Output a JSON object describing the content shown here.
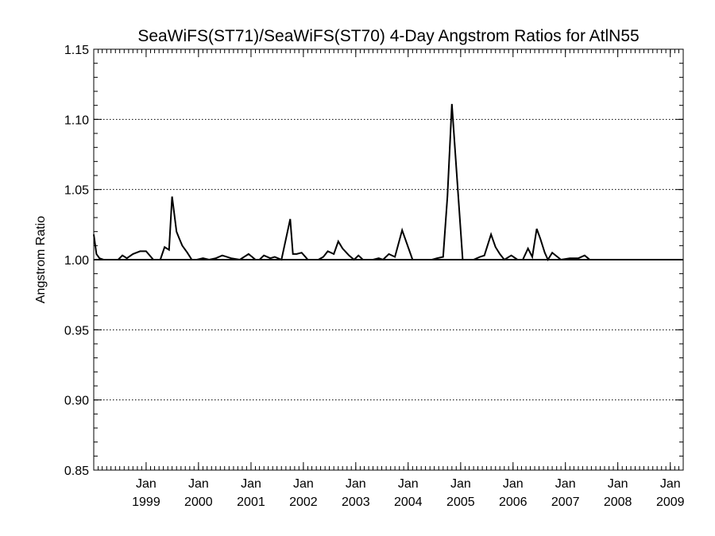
{
  "chart_data": {
    "type": "line",
    "title": "SeaWiFS(ST71)/SeaWiFS(ST70) 4-Day Angstrom Ratios for AtlN55",
    "xlabel": "",
    "ylabel": "Angstrom Ratio",
    "ylim": [
      0.85,
      1.15
    ],
    "yticks": [
      0.85,
      0.9,
      0.95,
      1.0,
      1.05,
      1.1,
      1.15
    ],
    "ytick_labels": [
      "0.85",
      "0.90",
      "0.95",
      "1.00",
      "1.05",
      "1.10",
      "1.15"
    ],
    "xlim": [
      "1998-01-01",
      "2009-04-01"
    ],
    "xticks": [
      {
        "date": "1999-01-01",
        "month": "Jan",
        "year": "1999"
      },
      {
        "date": "2000-01-01",
        "month": "Jan",
        "year": "2000"
      },
      {
        "date": "2001-01-01",
        "month": "Jan",
        "year": "2001"
      },
      {
        "date": "2002-01-01",
        "month": "Jan",
        "year": "2002"
      },
      {
        "date": "2003-01-01",
        "month": "Jan",
        "year": "2003"
      },
      {
        "date": "2004-01-01",
        "month": "Jan",
        "year": "2004"
      },
      {
        "date": "2005-01-01",
        "month": "Jan",
        "year": "2005"
      },
      {
        "date": "2006-01-01",
        "month": "Jan",
        "year": "2006"
      },
      {
        "date": "2007-01-01",
        "month": "Jan",
        "year": "2007"
      },
      {
        "date": "2008-01-01",
        "month": "Jan",
        "year": "2008"
      },
      {
        "date": "2009-01-01",
        "month": "Jan",
        "year": "2009"
      }
    ],
    "grid": "horizontal-dotted",
    "reference_line": 1.0,
    "series": [
      {
        "x": [
          "1998-01-01",
          "1998-01-20",
          "1998-02-10",
          "1998-03-10",
          "1998-04-15",
          "1998-05-20",
          "1998-06-20",
          "1998-07-20",
          "1998-08-20",
          "1998-10-01",
          "1998-11-20",
          "1999-01-01",
          "1999-02-20",
          "1999-04-10",
          "1999-05-10",
          "1999-06-10",
          "1999-07-01",
          "1999-08-01",
          "1999-08-20",
          "1999-09-10",
          "1999-10-15",
          "1999-11-15",
          "1999-12-20",
          "2000-02-01",
          "2000-03-15",
          "2000-05-01",
          "2000-06-15",
          "2000-08-15",
          "2000-10-15",
          "2000-12-15",
          "2001-02-01",
          "2001-03-01",
          "2001-04-01",
          "2001-05-15",
          "2001-06-15",
          "2001-08-01",
          "2001-10-01",
          "2001-10-20",
          "2001-11-15",
          "2001-12-20",
          "2002-02-01",
          "2002-03-15",
          "2002-04-15",
          "2002-05-20",
          "2002-06-20",
          "2002-08-01",
          "2002-09-01",
          "2002-10-01",
          "2002-11-15",
          "2002-12-20",
          "2003-01-20",
          "2003-02-20",
          "2003-04-01",
          "2003-05-01",
          "2003-06-10",
          "2003-07-10",
          "2003-08-20",
          "2003-10-01",
          "2003-11-20",
          "2004-02-01",
          "2004-03-15",
          "2004-04-15",
          "2004-05-15",
          "2004-06-15",
          "2004-07-20",
          "2004-09-01",
          "2004-10-01",
          "2004-11-01",
          "2005-01-15",
          "2005-02-10",
          "2005-03-01",
          "2005-04-01",
          "2005-05-15",
          "2005-06-15",
          "2005-08-01",
          "2005-09-01",
          "2005-10-01",
          "2005-11-01",
          "2005-12-20",
          "2006-02-01",
          "2006-03-10",
          "2006-04-15",
          "2006-05-15",
          "2006-06-15",
          "2006-07-10",
          "2006-08-10",
          "2006-09-01",
          "2006-10-01",
          "2006-12-01",
          "2007-02-01",
          "2007-03-01",
          "2007-04-01",
          "2007-05-15",
          "2007-06-20",
          "2007-08-01",
          "2007-09-01",
          "2007-10-01",
          "2007-11-15",
          "2008-01-20",
          "2008-03-15",
          "2008-05-15",
          "2008-08-01",
          "2008-11-01",
          "2009-02-01",
          "2009-04-01"
        ],
        "y": [
          1.018,
          1.004,
          1.001,
          1.0,
          1.0,
          1.0,
          1.0,
          1.003,
          1.001,
          1.004,
          1.006,
          1.006,
          1.0,
          1.0,
          1.009,
          1.007,
          1.045,
          1.02,
          1.015,
          1.01,
          1.005,
          1.0,
          1.0,
          1.001,
          1.0,
          1.001,
          1.003,
          1.001,
          1.0,
          1.004,
          1.0,
          1.0,
          1.003,
          1.001,
          1.002,
          1.0,
          1.029,
          1.004,
          1.004,
          1.005,
          1.0,
          1.0,
          1.0,
          1.002,
          1.006,
          1.004,
          1.013,
          1.008,
          1.003,
          1.0,
          1.003,
          1.0,
          1.0,
          1.0,
          1.001,
          1.0,
          1.004,
          1.002,
          1.021,
          1.0,
          1.0,
          1.0,
          1.0,
          1.0,
          1.001,
          1.002,
          1.045,
          1.111,
          1.0,
          1.0,
          1.0,
          1.0,
          1.002,
          1.003,
          1.018,
          1.009,
          1.004,
          1.0,
          1.003,
          1.0,
          1.0,
          1.008,
          1.002,
          1.022,
          1.015,
          1.005,
          1.0,
          1.005,
          1.0,
          1.001,
          1.001,
          1.001,
          1.003,
          1.0,
          1.0,
          1.0,
          1.0,
          1.0,
          1.0,
          1.0,
          1.0,
          1.0,
          1.0,
          1.0,
          1.0
        ]
      }
    ]
  }
}
